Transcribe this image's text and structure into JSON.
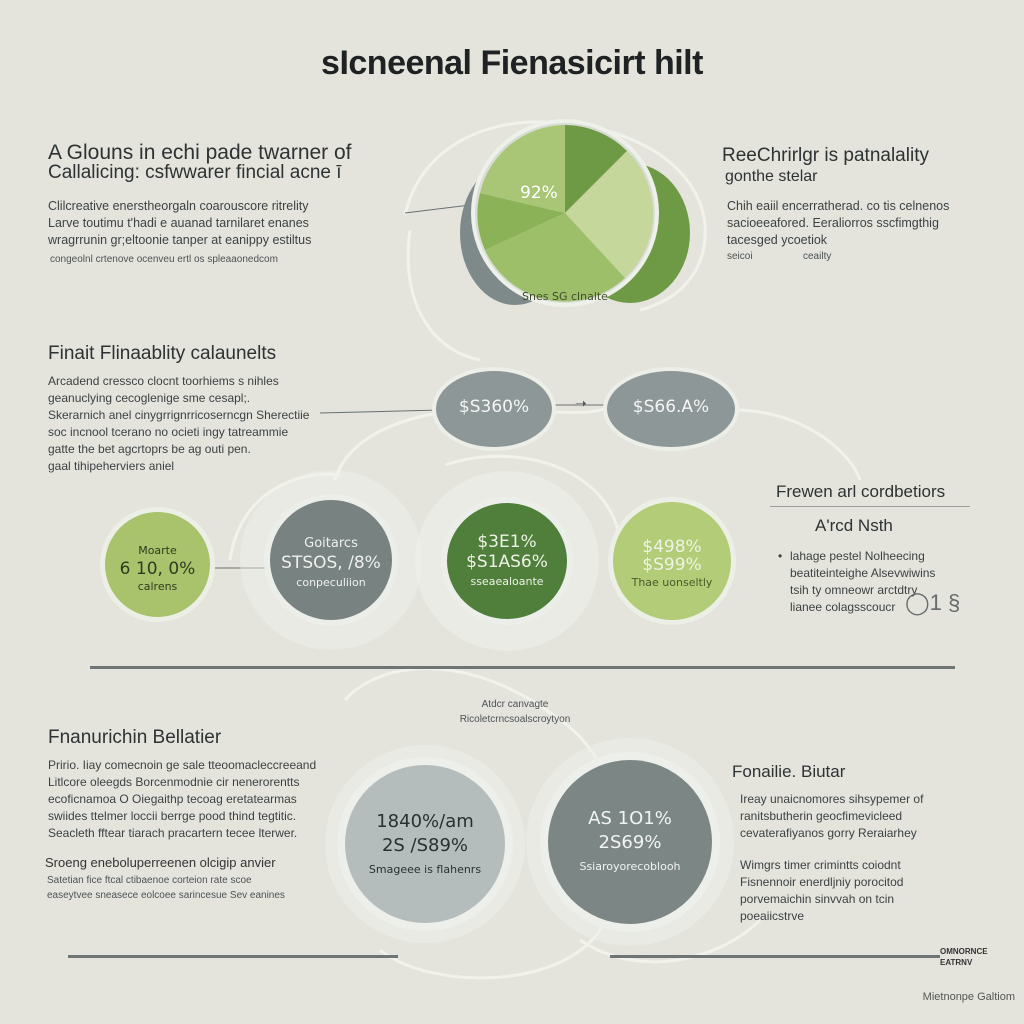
{
  "title": "sIcneenal Fienasicirt hilt",
  "top_left": {
    "heading_line1": "A Glouns in echi pade twarner of",
    "heading_line2": "Callalicing: csfwwarer fincial acne ī",
    "paragraph": [
      "Clilcreative enerstheorgaln coarouscore ritrelity",
      "Larve toutimu t'hadi e auanad tarnilaret enanes",
      "wragrrunin gr;eltoonie tanper at eanippy estiltus"
    ],
    "small": "congeolnl crtenove ocenveu ertl os spleaaonedcom"
  },
  "pie": {
    "label_pct": "92%",
    "label_bottom": "Snes SG clnalte",
    "colors": [
      "#6f9a45",
      "#9dbf6a",
      "#c5d79b",
      "#6b8f3e",
      "#7e8a8a"
    ]
  },
  "top_right": {
    "heading_line1": "ReeChrirlgr is patnalality",
    "heading_line2": "gonthe stelar",
    "paragraph": [
      "Chih eaiil encerratherad. co tis celnenos",
      "sacioeeafored. Eeraliorros sscfimgthig",
      "tacesged ycoetiok"
    ],
    "small_left": "seicoi",
    "small_right": "ceailty"
  },
  "middle_left": {
    "heading": "Finait Flinaablity calaunelts",
    "paragraph": [
      "Arcadend cressco clocnt toorhiems s nihles",
      "geanuclying cecoglenige sme cesapl;.",
      "Skerarnich anel cinygrrignrricoserncgn Sherectiie",
      "soc incnool tcerano no ocieti ingy tatreammie",
      "gatte the bet agcrtoprs be ag outi pen.",
      "gaal tihipeherviers aniel"
    ]
  },
  "mid_ovals": [
    {
      "text": "$S360%",
      "color": "#8e9797"
    },
    {
      "text": "$S66.A%",
      "color": "#8e9797"
    }
  ],
  "circles": [
    {
      "top": "Moarte",
      "value": "6 10, 0%",
      "bottom": "calrens",
      "color": "#a8c36b",
      "text_color": "#2f3a20"
    },
    {
      "top": "Goitarcs",
      "value": "STSOS, /8%",
      "bottom": "conpeculiion",
      "color": "#788281",
      "text_color": "#eef0ee"
    },
    {
      "top": "$3E1%",
      "value": "$S1AS6%",
      "bottom": "sseaealoante",
      "color": "#4f7f3a",
      "text_color": "#eef2e8"
    },
    {
      "top": "$498%",
      "value": "$S99%",
      "bottom": "Thae uonseltly",
      "color": "#b3cc78",
      "text_color": "#eff3e4"
    }
  ],
  "right_panel": {
    "heading": "Frewen arl cordbetiors",
    "subheading": "A'rcd Nsth",
    "bullets": [
      "lahage pestel Nolheecing",
      "beatiteinteighe Alsevwiwins",
      "tsih ty omneowr arctdtry",
      "lianee colagsscoucr"
    ],
    "mark": "◯1 §"
  },
  "center_note": {
    "line1": "Atdcr canvagte",
    "line2": "Ricoletcrncsoalscroytyon"
  },
  "bottom_left": {
    "heading": "Fnanurichin Bellatier",
    "paragraph": [
      "Pririo. Iiay comecnoin ge sale tteoomacleccreeand",
      "Litlcore oleegds Borcenmodnie cir nenerorentts",
      "ecoficnamoa O Oiegaithp tecoag eretatearmas",
      "swiides ttelmer loccii berrge pood thind tegtitic.",
      "Seacleth fftear tiarach pracartern tecee lterwer."
    ],
    "subheading": "Sroeng eneboluperreenen olcigip anvier",
    "small": [
      "Satetian fice ftcal ctibaenoe corteion rate scoe",
      "easeytvee sneasece eolcoee sarincesue Sev eanines"
    ]
  },
  "bottom_circles": [
    {
      "line1": "1840%/am",
      "line2": "2S /S89%",
      "caption": "Smageee is flahenrs",
      "color": "#b4bcbc",
      "text_color": "#2a302f"
    },
    {
      "line1": "AS 1O1%",
      "line2": "2S69%",
      "caption": "Ssiaroyorecoblooh",
      "color": "#7b8685",
      "text_color": "#f2f4f3"
    }
  ],
  "bottom_right": {
    "heading": "Fonailie. Biutar",
    "paragraph": [
      "Ireay unaicnomores sihsypemer of",
      "ranitsbutherin geocfimevicleed",
      "cevaterafiyanos gorry Reraiarhey"
    ],
    "paragraph2": [
      "Wimgrs timer crimintts coiodnt",
      "Fisnennoir enerdljniy porocitod",
      "porvemaichin sinvvah on tcin",
      "poeaiicstrve"
    ]
  },
  "footer": {
    "right_top": "OMNORNCE",
    "right_bottom": "EATRNV",
    "credit": "Mietnonpe Galtiom"
  }
}
